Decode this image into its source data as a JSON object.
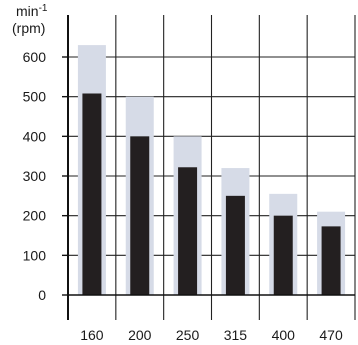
{
  "chart_data": {
    "type": "bar",
    "y_unit_main": "min",
    "y_unit_sup": "-1",
    "y_unit_alt": "(rpm)",
    "categories": [
      "160",
      "200",
      "250",
      "315",
      "400",
      "470"
    ],
    "series": [
      {
        "values": [
          630,
          500,
          400,
          320,
          255,
          210
        ],
        "color": "#d6dbe7"
      },
      {
        "values": [
          508,
          400,
          322,
          250,
          200,
          173
        ],
        "color": "#231f20"
      }
    ],
    "ylim": [
      0,
      640
    ],
    "yticks": [
      0,
      100,
      200,
      300,
      400,
      500,
      600
    ],
    "grid": true
  }
}
